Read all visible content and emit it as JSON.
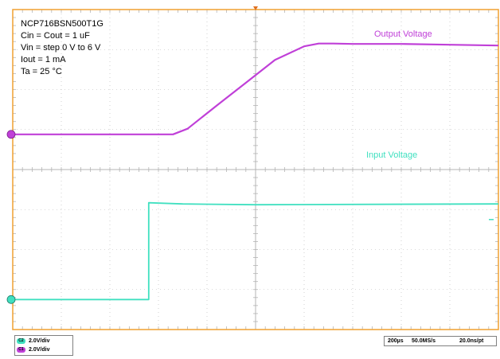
{
  "annotations": {
    "part_number": "NCP716BSN500T1G",
    "capacitance": "Cin = Cout = 1 uF",
    "vin_step": "Vin = step 0 V to 6 V",
    "iout": "Iout = 1 mA",
    "ta": "Ta = 25 °C"
  },
  "colors": {
    "border": "#f0a030",
    "grid": "#b4b4b4",
    "output_trace": "#c040d8",
    "input_trace": "#40e0c0",
    "marker": "#e07020"
  },
  "channels": [
    {
      "tag": "C2",
      "scale": "2.0V/div",
      "color": "#40e0c0"
    },
    {
      "tag": "C1",
      "scale": "2.0V/div",
      "color": "#c040d8"
    }
  ],
  "acquisition": {
    "timebase": "200µs",
    "sample_rate": "50.0MS/s",
    "resolution": "20.0ns/pt"
  },
  "chart_data": {
    "type": "line",
    "x_unit": "div",
    "y_unit": "div",
    "grid": true,
    "xlim": [
      0,
      10
    ],
    "ylim": [
      0,
      8
    ],
    "series": [
      {
        "name": "Output Voltage",
        "color": "#c040d8",
        "x": [
          0,
          3.3,
          3.6,
          4.2,
          4.8,
          5.4,
          6.0,
          6.3,
          6.6,
          7.0,
          8.0,
          9.0,
          10.0
        ],
        "y": [
          4.88,
          4.88,
          5.02,
          5.6,
          6.17,
          6.74,
          7.08,
          7.15,
          7.15,
          7.14,
          7.14,
          7.12,
          7.1
        ]
      },
      {
        "name": "Input Voltage",
        "color": "#40e0c0",
        "x": [
          0,
          2.8,
          2.8,
          3.5,
          5.0,
          10.0
        ],
        "y": [
          0.75,
          0.75,
          3.17,
          3.14,
          3.12,
          3.14
        ]
      }
    ]
  }
}
